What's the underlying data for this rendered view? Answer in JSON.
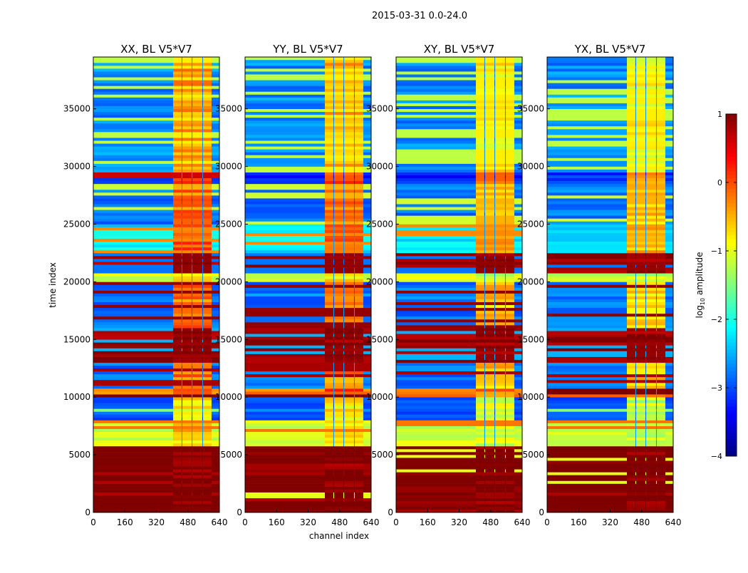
{
  "chart_data": {
    "type": "heatmap",
    "title": "2015-03-31 0.0-24.0",
    "xlabel": "channel index",
    "ylabel": "time index",
    "xlim": [
      0,
      640
    ],
    "ylim": [
      0,
      39500
    ],
    "xticks": [
      "0",
      "160",
      "320",
      "480",
      "640"
    ],
    "xtick_values": [
      0,
      160,
      320,
      480,
      640
    ],
    "yticks": [
      "0",
      "5000",
      "10000",
      "15000",
      "20000",
      "25000",
      "30000",
      "35000"
    ],
    "ytick_values": [
      0,
      5000,
      10000,
      15000,
      20000,
      25000,
      30000,
      35000
    ],
    "panels": [
      {
        "title": "XX, BL V5*V7",
        "rfi_offset": 0.4
      },
      {
        "title": "YY, BL V5*V7",
        "rfi_offset": 0.3
      },
      {
        "title": "XY, BL V5*V7",
        "rfi_offset": 0.0
      },
      {
        "title": "YX, BL V5*V7",
        "rfi_offset": -0.1
      }
    ],
    "rfi_channels": [
      405,
      600
    ],
    "rfi_gap_channels": [
      448,
      499,
      553
    ],
    "bands": [
      {
        "from": 0,
        "to": 5600,
        "base": 1.0,
        "rfi": 1.0,
        "stripe_prob": 0.06,
        "stripe": -1.0
      },
      {
        "from": 5600,
        "to": 7000,
        "base": -1.1,
        "rfi": -1.1,
        "stripe_prob": 0.0,
        "stripe": -1.0
      },
      {
        "from": 7000,
        "to": 8000,
        "base": -1.1,
        "rfi": -1.0,
        "stripe_prob": 0.4,
        "stripe": -0.2
      },
      {
        "from": 8000,
        "to": 10000,
        "base": -2.9,
        "rfi": -1.1,
        "stripe_prob": 0.15,
        "stripe": -1.5
      },
      {
        "from": 10000,
        "to": 10700,
        "base": -0.3,
        "rfi": -0.2,
        "stripe_prob": 0.3,
        "stripe": 1.0
      },
      {
        "from": 10700,
        "to": 13000,
        "base": -2.8,
        "rfi": -0.6,
        "stripe_prob": 0.25,
        "stripe": 0.8
      },
      {
        "from": 13000,
        "to": 16000,
        "base": 0.9,
        "rfi": 0.9,
        "stripe_prob": 0.35,
        "stripe": -2.5
      },
      {
        "from": 16000,
        "to": 19800,
        "base": -2.8,
        "rfi": -0.6,
        "stripe_prob": 0.3,
        "stripe": 0.9
      },
      {
        "from": 19800,
        "to": 20700,
        "base": -1.1,
        "rfi": -1.1,
        "stripe_prob": 0.1,
        "stripe": -2.5
      },
      {
        "from": 20700,
        "to": 22500,
        "base": 0.9,
        "rfi": 0.9,
        "stripe_prob": 0.4,
        "stripe": -2.8
      },
      {
        "from": 22500,
        "to": 25000,
        "base": -2.2,
        "rfi": -0.4,
        "stripe_prob": 0.15,
        "stripe": -0.3
      },
      {
        "from": 25000,
        "to": 28500,
        "base": -2.8,
        "rfi": -0.5,
        "stripe_prob": 0.4,
        "stripe": -1.1
      },
      {
        "from": 28500,
        "to": 29500,
        "base": -3.2,
        "rfi": -0.2,
        "stripe_prob": 0.1,
        "stripe": 0.6
      },
      {
        "from": 29500,
        "to": 39500,
        "base": -2.7,
        "rfi": -0.8,
        "stripe_prob": 0.4,
        "stripe": -1.2
      }
    ],
    "colorbar": {
      "label_prefix": "log",
      "label_sub": "10",
      "label_suffix": " amplitude",
      "range": [
        -4,
        1
      ],
      "ticks": [
        "1",
        "0",
        "−1",
        "−2",
        "−3",
        "−4"
      ],
      "tick_values": [
        1,
        0,
        -1,
        -2,
        -3,
        -4
      ],
      "colormap": "jet"
    }
  }
}
